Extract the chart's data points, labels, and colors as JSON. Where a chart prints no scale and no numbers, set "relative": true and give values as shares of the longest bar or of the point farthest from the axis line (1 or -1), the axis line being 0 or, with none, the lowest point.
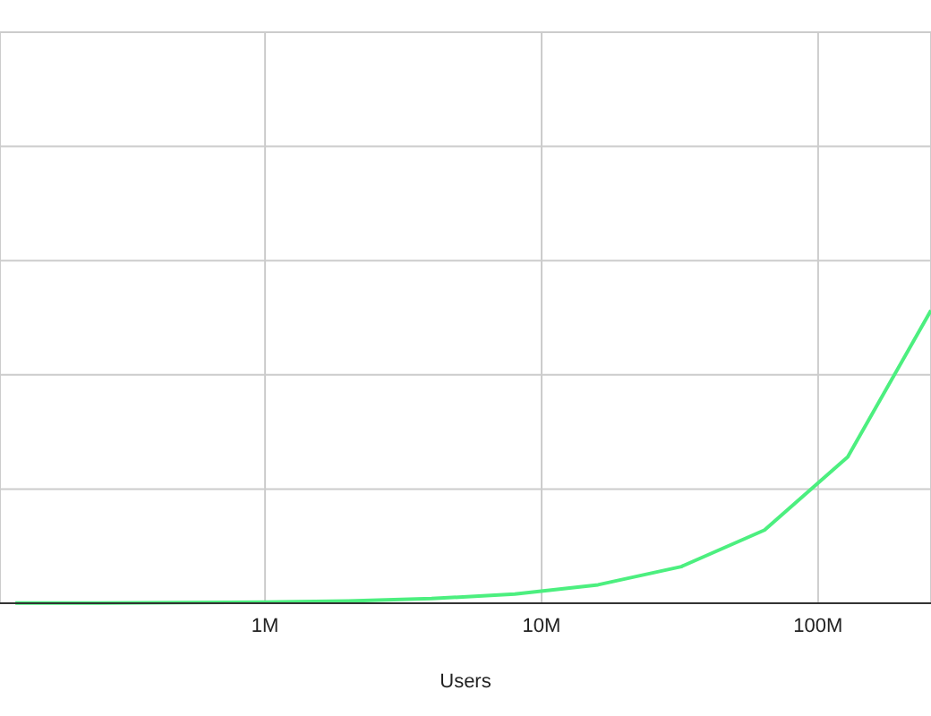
{
  "chart_data": {
    "type": "line",
    "xlabel": "Users",
    "log": "x",
    "relative": true,
    "grid": true,
    "tick_labels": "x",
    "marker": "none",
    "line_style": "solid",
    "x": [
      125000,
      250000,
      500000,
      1000000,
      2000000,
      4000000,
      8000000,
      16000000,
      32000000,
      64000000,
      128000000,
      256000000
    ],
    "xlim": [
      110000,
      256000000
    ],
    "xticks": [
      {
        "value": 1000000,
        "label": "1M"
      },
      {
        "value": 10000000,
        "label": "10M"
      },
      {
        "value": 100000000,
        "label": "100M"
      }
    ],
    "series": [
      {
        "color": "#4cef7f",
        "values": [
          0.0005,
          0.001,
          0.002,
          0.004,
          0.008,
          0.016,
          0.031,
          0.063,
          0.125,
          0.25,
          0.5,
          1
        ]
      }
    ]
  }
}
